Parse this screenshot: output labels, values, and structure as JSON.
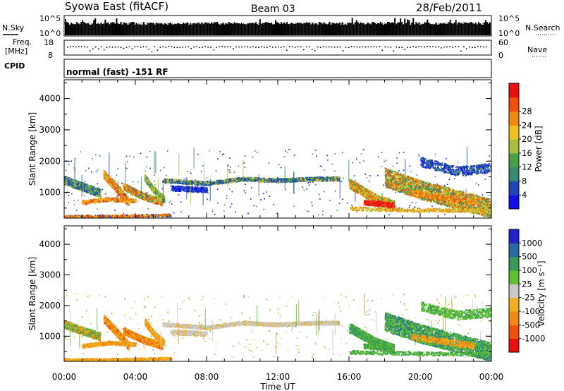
{
  "header": {
    "station": "Syowa East (fitACF)",
    "beam": "Beam 03",
    "date": "28/Feb/2011"
  },
  "top_panels": {
    "nsky_label": "N.Sky",
    "nsearch_label": "N.Search",
    "count_ticks": [
      "10^5",
      "10^0"
    ],
    "freq_label_line1": "Freq.",
    "freq_label_line2": "[MHz]",
    "freq_ticks": [
      "18",
      "8"
    ],
    "nave_label": "Nave",
    "nave_ticks": [
      "60",
      "0"
    ],
    "cpid_label": "CPID",
    "cpid_text": "normal (fast) -151 RF"
  },
  "chart_data": [
    {
      "type": "heatmap",
      "title": "Power",
      "xlabel": "Time UT",
      "ylabel": "Slant Range [km]",
      "x_range_hours": [
        0,
        24
      ],
      "ylim": [
        180,
        4600
      ],
      "x_tick_labels": [
        "00:00",
        "04:00",
        "08:00",
        "12:00",
        "16:00",
        "20:00",
        "00:00"
      ],
      "y_tick_labels": [
        "1000",
        "2000",
        "3000",
        "4000"
      ],
      "colorbar": {
        "label": "Power [dB]",
        "colors": [
          "#1010ee",
          "#2244bb",
          "#3a8870",
          "#4aa04a",
          "#a8c040",
          "#f0c020",
          "#f08a10",
          "#ee5010",
          "#e81010"
        ],
        "tick_labels": [
          "4",
          "8",
          "12",
          "16",
          "20",
          "24",
          "28"
        ]
      }
    },
    {
      "type": "heatmap",
      "title": "Velocity",
      "xlabel": "Time UT",
      "ylabel": "Slant Range [km]",
      "x_range_hours": [
        0,
        24
      ],
      "ylim": [
        180,
        4600
      ],
      "x_tick_labels": [
        "00:00",
        "04:00",
        "08:00",
        "12:00",
        "16:00",
        "20:00",
        "00:00"
      ],
      "y_tick_labels": [
        "1000",
        "2000",
        "3000",
        "4000"
      ],
      "colorbar": {
        "label": "Velocity [m s⁻¹]",
        "colors": [
          "#e81010",
          "#f05010",
          "#f08a10",
          "#f0b020",
          "#c8c8c8",
          "#60c030",
          "#3a9a5a",
          "#2a6aa0",
          "#2222cc"
        ],
        "tick_labels": [
          "-1000",
          "-500",
          "-100",
          "-25",
          "25",
          "100",
          "500",
          "1000"
        ]
      }
    }
  ]
}
